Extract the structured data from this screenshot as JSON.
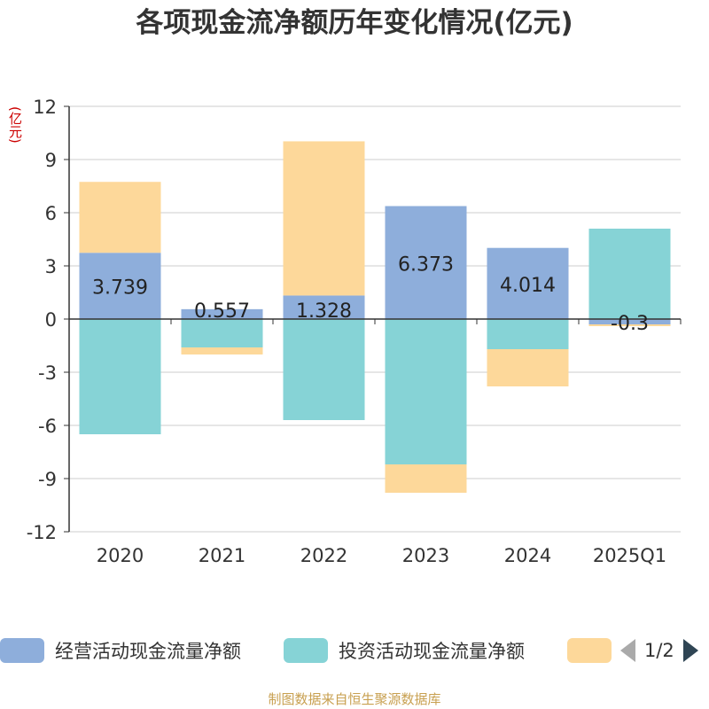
{
  "title": "各项现金流净额历年变化情况(亿元)",
  "unit_label": "(亿元)",
  "footer": "制图数据来自恒生聚源数据库",
  "legend": {
    "items": [
      {
        "label": "经营活动现金流量净额",
        "color": "#8eaedb"
      },
      {
        "label": "投资活动现金流量净额",
        "color": "#86d3d6"
      },
      {
        "label": "",
        "color": "#fdd89a"
      }
    ],
    "page_text": "1/2"
  },
  "chart_data": {
    "type": "bar",
    "stacked": true,
    "categories": [
      "2020",
      "2021",
      "2022",
      "2023",
      "2024",
      "2025Q1"
    ],
    "ylim": [
      -12,
      12
    ],
    "yticks": [
      -12,
      -9,
      -6,
      -3,
      0,
      3,
      6,
      9,
      12
    ],
    "grid": true,
    "legend_position": "bottom",
    "series": [
      {
        "name": "经营活动现金流量净额",
        "color": "#8eaedb",
        "values": [
          3.739,
          0.557,
          1.328,
          6.373,
          4.014,
          -0.3
        ],
        "labels": [
          "3.739",
          "0.557",
          "1.328",
          "6.373",
          "4.014",
          "-0.3"
        ]
      },
      {
        "name": "投资活动现金流量净额",
        "color": "#86d3d6",
        "values": [
          -6.5,
          -1.6,
          -5.7,
          -8.2,
          -1.7,
          5.1
        ]
      },
      {
        "color": "#fdd89a",
        "values": [
          4.0,
          -0.4,
          8.7,
          -1.6,
          -2.1,
          -0.1
        ]
      }
    ]
  }
}
